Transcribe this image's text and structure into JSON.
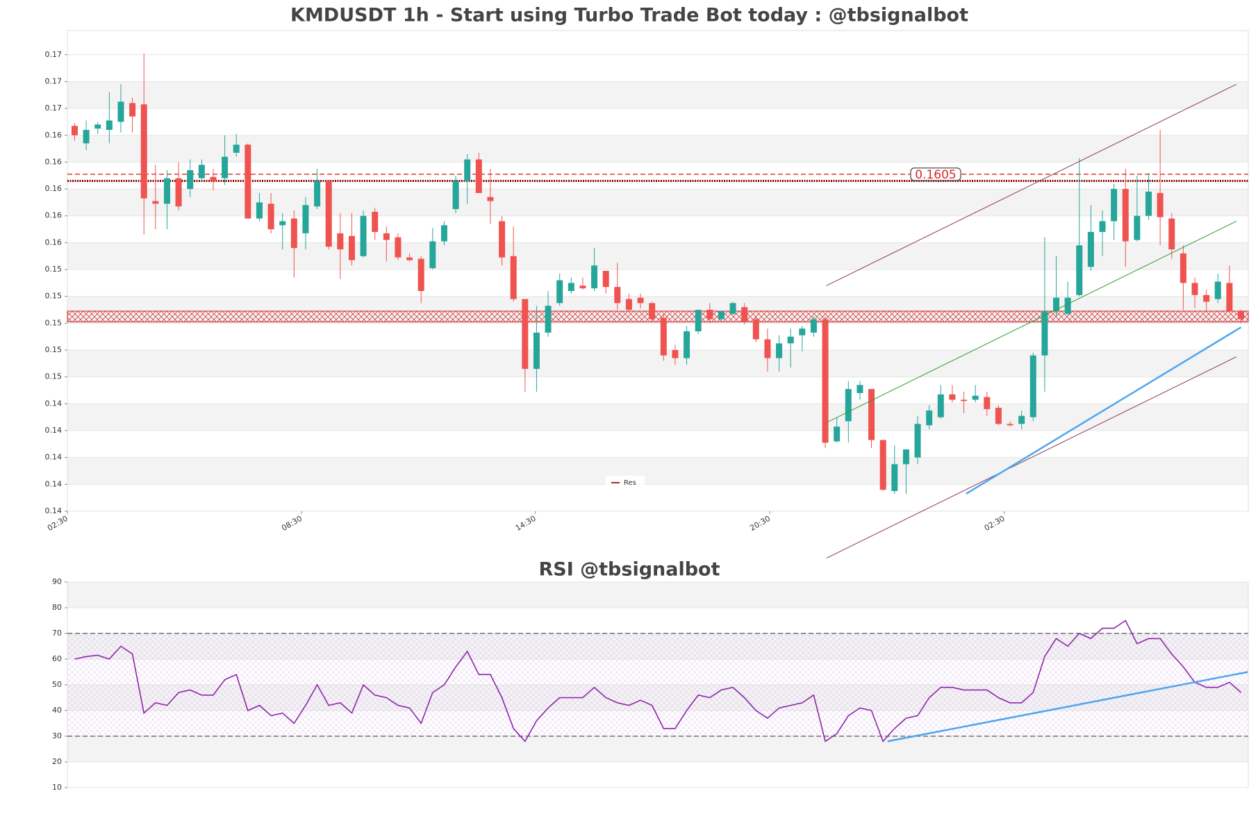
{
  "chart_data": [
    {
      "type": "candlestick",
      "title": "KMDUSDT 1h - Start using Turbo Trade Bot today : @tbsignalbot",
      "up_color": "#26a69a",
      "down_color": "#ef5350",
      "ylim": [
        0.1354,
        0.1712
      ],
      "yticks": [
        {
          "value": 0.1354,
          "label": "0.14"
        },
        {
          "value": 0.1374,
          "label": "0.14"
        },
        {
          "value": 0.1394,
          "label": "0.14"
        },
        {
          "value": 0.1414,
          "label": "0.14"
        },
        {
          "value": 0.1434,
          "label": "0.14"
        },
        {
          "value": 0.1454,
          "label": "0.15"
        },
        {
          "value": 0.1474,
          "label": "0.15"
        },
        {
          "value": 0.1494,
          "label": "0.15"
        },
        {
          "value": 0.1514,
          "label": "0.15"
        },
        {
          "value": 0.1534,
          "label": "0.15"
        },
        {
          "value": 0.1554,
          "label": "0.16"
        },
        {
          "value": 0.1574,
          "label": "0.16"
        },
        {
          "value": 0.1594,
          "label": "0.16"
        },
        {
          "value": 0.1614,
          "label": "0.16"
        },
        {
          "value": 0.1634,
          "label": "0.16"
        },
        {
          "value": 0.1654,
          "label": "0.17"
        },
        {
          "value": 0.1674,
          "label": "0.17"
        },
        {
          "value": 0.1694,
          "label": "0.17"
        }
      ],
      "xlim": [
        -0.63,
        101.63
      ],
      "xticks": [
        {
          "value": -0.63,
          "label": "02:30"
        },
        {
          "value": 19.65,
          "label": "08:30"
        },
        {
          "value": 39.9,
          "label": "14:30"
        },
        {
          "value": 60.2,
          "label": "20:30"
        },
        {
          "value": 80.5,
          "label": "02:30"
        }
      ],
      "ohlc": [
        [
          0.1641,
          0.1643,
          0.163,
          0.1634
        ],
        [
          0.1628,
          0.1645,
          0.1623,
          0.1638
        ],
        [
          0.1639,
          0.1644,
          0.1635,
          0.1642
        ],
        [
          0.1638,
          0.1666,
          0.1628,
          0.1645
        ],
        [
          0.1644,
          0.1672,
          0.1636,
          0.1659
        ],
        [
          0.1658,
          0.1662,
          0.1636,
          0.1648
        ],
        [
          0.1657,
          0.1695,
          0.156,
          0.1587
        ],
        [
          0.1585,
          0.1612,
          0.1564,
          0.1583
        ],
        [
          0.1583,
          0.1608,
          0.1564,
          0.1602
        ],
        [
          0.1602,
          0.1614,
          0.1578,
          0.1581
        ],
        [
          0.1594,
          0.1616,
          0.1588,
          0.1608
        ],
        [
          0.1602,
          0.1616,
          0.16,
          0.1612
        ],
        [
          0.1603,
          0.1609,
          0.1593,
          0.16
        ],
        [
          0.1602,
          0.1634,
          0.1597,
          0.1618
        ],
        [
          0.1621,
          0.1635,
          0.1618,
          0.1627
        ],
        [
          0.1627,
          0.1628,
          0.1572,
          0.1572
        ],
        [
          0.1572,
          0.1591,
          0.157,
          0.1584
        ],
        [
          0.1583,
          0.1591,
          0.1561,
          0.1564
        ],
        [
          0.1567,
          0.1576,
          0.1549,
          0.157
        ],
        [
          0.1572,
          0.1578,
          0.1528,
          0.155
        ],
        [
          0.1561,
          0.1588,
          0.1549,
          0.1582
        ],
        [
          0.1581,
          0.1609,
          0.1579,
          0.16
        ],
        [
          0.16,
          0.16,
          0.1549,
          0.1551
        ],
        [
          0.1561,
          0.1576,
          0.1527,
          0.1549
        ],
        [
          0.1559,
          0.1576,
          0.1537,
          0.1541
        ],
        [
          0.1544,
          0.1578,
          0.1543,
          0.1574
        ],
        [
          0.1577,
          0.158,
          0.1556,
          0.1562
        ],
        [
          0.1561,
          0.1566,
          0.154,
          0.1556
        ],
        [
          0.1558,
          0.1561,
          0.1541,
          0.1543
        ],
        [
          0.1543,
          0.1546,
          0.154,
          0.1541
        ],
        [
          0.1542,
          0.1544,
          0.1509,
          0.1518
        ],
        [
          0.1535,
          0.1565,
          0.1534,
          0.1555
        ],
        [
          0.1555,
          0.157,
          0.1552,
          0.1567
        ],
        [
          0.1579,
          0.1604,
          0.1576,
          0.16
        ],
        [
          0.16,
          0.162,
          0.1583,
          0.1616
        ],
        [
          0.1616,
          0.1621,
          0.1591,
          0.1591
        ],
        [
          0.1588,
          0.1609,
          0.1568,
          0.1585
        ],
        [
          0.157,
          0.1574,
          0.1537,
          0.1543
        ],
        [
          0.1544,
          0.1566,
          0.151,
          0.1512
        ],
        [
          0.1512,
          0.1512,
          0.1443,
          0.146
        ],
        [
          0.146,
          0.1507,
          0.1443,
          0.1487
        ],
        [
          0.1487,
          0.1518,
          0.1484,
          0.1507
        ],
        [
          0.1509,
          0.1531,
          0.1507,
          0.1526
        ],
        [
          0.1518,
          0.1528,
          0.1516,
          0.1524
        ],
        [
          0.1522,
          0.1528,
          0.1519,
          0.152
        ],
        [
          0.152,
          0.155,
          0.1518,
          0.1537
        ],
        [
          0.1533,
          0.1533,
          0.1516,
          0.1521
        ],
        [
          0.1521,
          0.1539,
          0.1504,
          0.1509
        ],
        [
          0.1512,
          0.1516,
          0.1503,
          0.1504
        ],
        [
          0.1513,
          0.1516,
          0.1505,
          0.1509
        ],
        [
          0.1509,
          0.151,
          0.1495,
          0.1497
        ],
        [
          0.1498,
          0.1501,
          0.1466,
          0.147
        ],
        [
          0.1474,
          0.1478,
          0.1463,
          0.1468
        ],
        [
          0.1468,
          0.1492,
          0.1463,
          0.1488
        ],
        [
          0.1488,
          0.1504,
          0.1486,
          0.1504
        ],
        [
          0.1504,
          0.1509,
          0.1494,
          0.1497
        ],
        [
          0.1497,
          0.1503,
          0.1495,
          0.1503
        ],
        [
          0.1501,
          0.151,
          0.15,
          0.1509
        ],
        [
          0.1506,
          0.1509,
          0.1493,
          0.1495
        ],
        [
          0.1497,
          0.1499,
          0.148,
          0.1482
        ],
        [
          0.1482,
          0.149,
          0.1458,
          0.1468
        ],
        [
          0.1468,
          0.1485,
          0.1458,
          0.1479
        ],
        [
          0.1479,
          0.149,
          0.1461,
          0.1484
        ],
        [
          0.1485,
          0.1492,
          0.1473,
          0.149
        ],
        [
          0.1487,
          0.1499,
          0.1484,
          0.1497
        ],
        [
          0.1497,
          0.1499,
          0.1401,
          0.1405
        ],
        [
          0.1406,
          0.1424,
          0.1405,
          0.1417
        ],
        [
          0.1421,
          0.1451,
          0.1405,
          0.1445
        ],
        [
          0.1442,
          0.1451,
          0.1437,
          0.1448
        ],
        [
          0.1445,
          0.1445,
          0.1401,
          0.1407
        ],
        [
          0.1407,
          0.1407,
          0.1369,
          0.137
        ],
        [
          0.1369,
          0.1403,
          0.1367,
          0.1389
        ],
        [
          0.1389,
          0.14,
          0.1367,
          0.14
        ],
        [
          0.1394,
          0.1425,
          0.1389,
          0.1419
        ],
        [
          0.1418,
          0.1433,
          0.1415,
          0.1429
        ],
        [
          0.1424,
          0.1448,
          0.1423,
          0.1441
        ],
        [
          0.1441,
          0.1448,
          0.1435,
          0.1437
        ],
        [
          0.1437,
          0.1443,
          0.1427,
          0.1436
        ],
        [
          0.1437,
          0.1448,
          0.1435,
          0.144
        ],
        [
          0.1439,
          0.1443,
          0.1425,
          0.143
        ],
        [
          0.1431,
          0.1433,
          0.1418,
          0.1419
        ],
        [
          0.1419,
          0.1421,
          0.1417,
          0.1418
        ],
        [
          0.1419,
          0.1429,
          0.1415,
          0.1425
        ],
        [
          0.1424,
          0.1472,
          0.1421,
          0.147
        ],
        [
          0.147,
          0.1558,
          0.1443,
          0.1503
        ],
        [
          0.1503,
          0.1544,
          0.1499,
          0.1513
        ],
        [
          0.1501,
          0.1525,
          0.15,
          0.1513
        ],
        [
          0.1515,
          0.1617,
          0.1514,
          0.1552
        ],
        [
          0.1536,
          0.1582,
          0.1533,
          0.1562
        ],
        [
          0.1562,
          0.1578,
          0.1544,
          0.157
        ],
        [
          0.157,
          0.1598,
          0.1556,
          0.1594
        ],
        [
          0.1594,
          0.1609,
          0.1536,
          0.1555
        ],
        [
          0.1556,
          0.1604,
          0.1555,
          0.1574
        ],
        [
          0.1574,
          0.1606,
          0.1571,
          0.1592
        ],
        [
          0.1591,
          0.1638,
          0.1552,
          0.1573
        ],
        [
          0.1572,
          0.1576,
          0.1542,
          0.1549
        ],
        [
          0.1546,
          0.1552,
          0.1504,
          0.1524
        ],
        [
          0.1524,
          0.1528,
          0.1505,
          0.1515
        ],
        [
          0.1515,
          0.1519,
          0.1503,
          0.151
        ],
        [
          0.1512,
          0.1531,
          0.1509,
          0.1525
        ],
        [
          0.1524,
          0.1537,
          0.1503,
          0.1503
        ],
        [
          0.1503,
          0.1504,
          0.1494,
          0.1497
        ]
      ],
      "levels": [
        {
          "value": 0.1605,
          "color": "#d62728",
          "style": "dashed"
        },
        {
          "value": 0.16,
          "color": "#8b0000",
          "style": "dotted"
        }
      ],
      "zone": [
        0.1495,
        0.1503
      ],
      "zone_color": "#d62728",
      "trendlines": [
        {
          "x": [
            65.1,
            100.6
          ],
          "y": [
            0.1522,
            0.1672
          ],
          "color": "#8b3a52",
          "width": 1
        },
        {
          "x": [
            65.1,
            100.6
          ],
          "y": [
            0.1319,
            0.1469
          ],
          "color": "#8b3a52",
          "width": 1
        },
        {
          "x": [
            65.1,
            100.6
          ],
          "y": [
            0.142,
            0.157
          ],
          "color": "#2ca02c",
          "width": 1
        },
        {
          "x": [
            77.2,
            101.0
          ],
          "y": [
            0.1367,
            0.1491
          ],
          "color": "#4ea5ec",
          "width": 2.5
        }
      ],
      "legend": [
        {
          "label": "Res",
          "color": "#b22222"
        }
      ]
    },
    {
      "type": "line",
      "title": "RSI @tbsignalbot",
      "color": "#8e24aa",
      "ylim": [
        10,
        90
      ],
      "yticks": [
        10,
        20,
        30,
        40,
        50,
        60,
        70,
        80,
        90
      ],
      "xlim": [
        -0.63,
        101.63
      ],
      "values": [
        60,
        61,
        61.5,
        60,
        65,
        62,
        39,
        43,
        42,
        47,
        48,
        46,
        46,
        52,
        54,
        40,
        42,
        38,
        39,
        35,
        42,
        50,
        42,
        43,
        39,
        50,
        46,
        45,
        42,
        41,
        35,
        47,
        50,
        57,
        63,
        54,
        54,
        45,
        33,
        28,
        36,
        41,
        45,
        45,
        45,
        49,
        45,
        43,
        42,
        44,
        42,
        33,
        33,
        40,
        46,
        45,
        48,
        49,
        45,
        40,
        37,
        41,
        42,
        43,
        46,
        28,
        31,
        38,
        41,
        40,
        28,
        33,
        37,
        38,
        45,
        49,
        49,
        48,
        48,
        48,
        45,
        43,
        43,
        47,
        61,
        68,
        65,
        70,
        68,
        72,
        72,
        75,
        66,
        68,
        68,
        62,
        57,
        51,
        49,
        49,
        51,
        47
      ],
      "levels": [
        {
          "value": 70,
          "color": "#555",
          "style": "dashed"
        },
        {
          "value": 30,
          "color": "#555",
          "style": "dashed"
        }
      ],
      "zone": [
        30,
        70
      ],
      "zone_color": "#c9a0dc",
      "trendlines": [
        {
          "x": [
            70.4,
            101.6
          ],
          "y": [
            28,
            55
          ],
          "color": "#4ea5ec",
          "width": 2.5
        }
      ]
    }
  ]
}
